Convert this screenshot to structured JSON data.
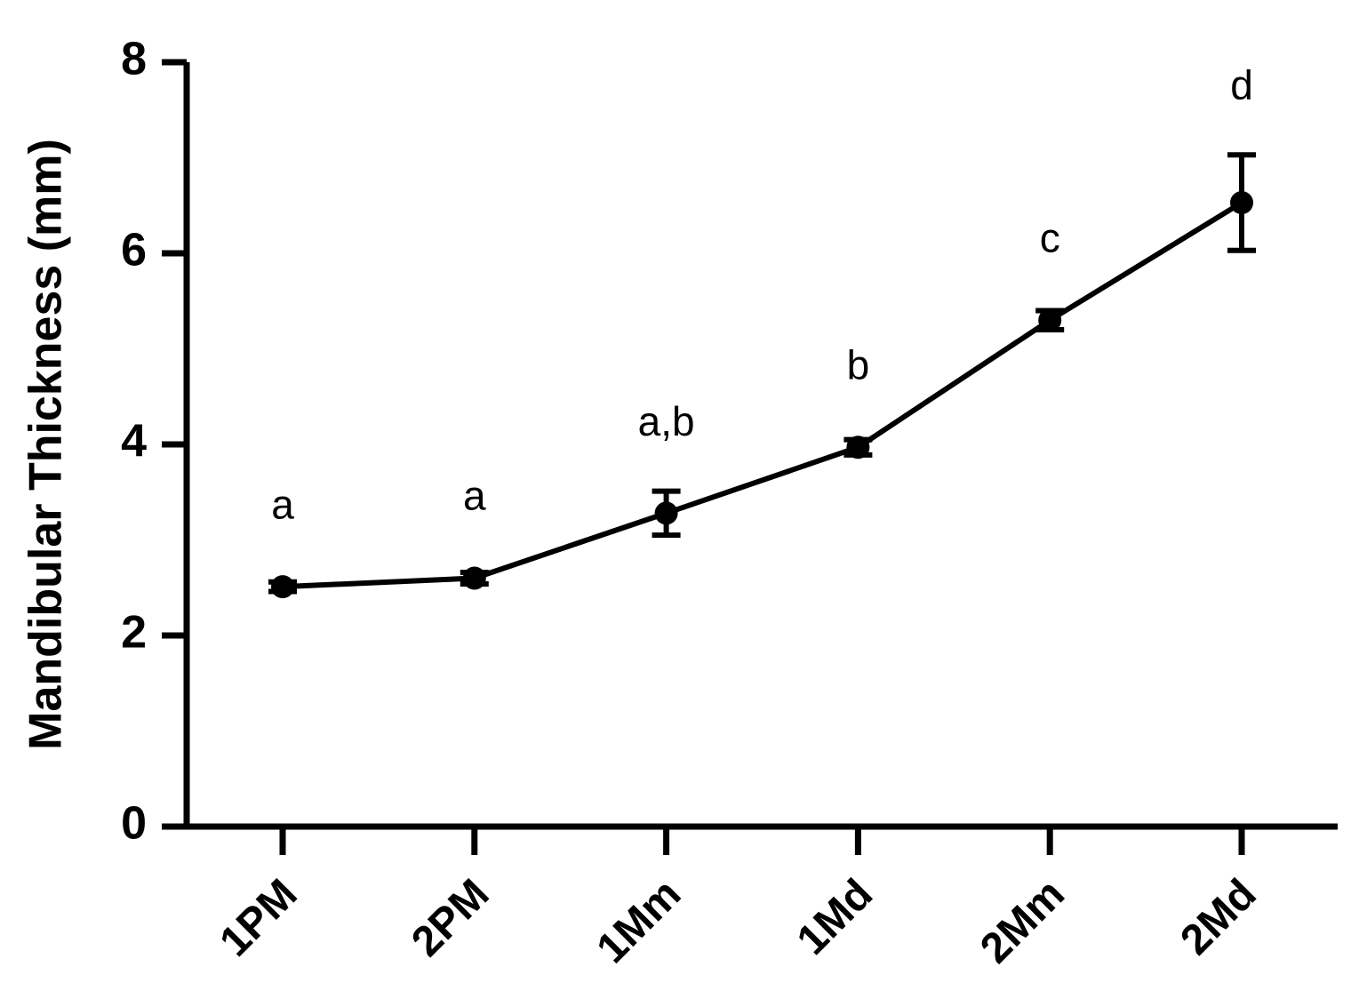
{
  "chart_data": {
    "type": "line",
    "y_label": "Mandibular Thickness (mm)",
    "categories": [
      "1PM",
      "2PM",
      "1Mm",
      "1Md",
      "2Mm",
      "2Md"
    ],
    "values": [
      2.51,
      2.6,
      3.28,
      3.97,
      5.3,
      6.53
    ],
    "errors": [
      0.05,
      0.06,
      0.23,
      0.08,
      0.1,
      0.5
    ],
    "annotations": [
      "a",
      "a",
      "a,b",
      "b",
      "c",
      "d"
    ],
    "color": "#000000",
    "ylim": [
      0,
      8
    ],
    "yticks": [
      0,
      2,
      4,
      6,
      8
    ]
  }
}
